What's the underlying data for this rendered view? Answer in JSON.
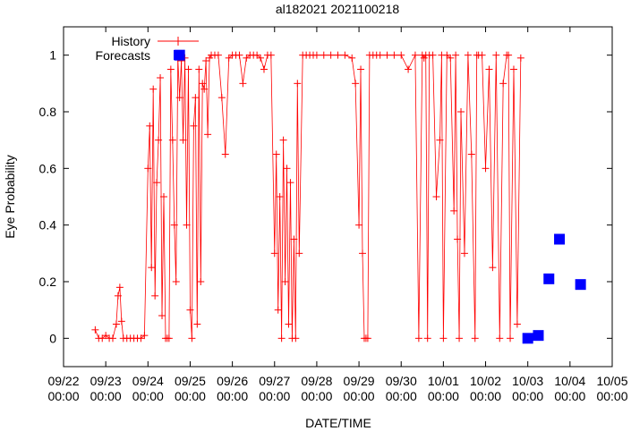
{
  "chart_data": {
    "type": "scatter",
    "title": "al182021 2021100218",
    "xlabel": "DATE/TIME",
    "ylabel": "Eye Probability",
    "xlim": [
      "09/22 00:00",
      "10/05 00:00"
    ],
    "ylim": [
      -0.1,
      1.1
    ],
    "x_ticks": [
      {
        "l1": "09/22",
        "l2": "00:00"
      },
      {
        "l1": "09/23",
        "l2": "00:00"
      },
      {
        "l1": "09/24",
        "l2": "00:00"
      },
      {
        "l1": "09/25",
        "l2": "00:00"
      },
      {
        "l1": "09/26",
        "l2": "00:00"
      },
      {
        "l1": "09/27",
        "l2": "00:00"
      },
      {
        "l1": "09/28",
        "l2": "00:00"
      },
      {
        "l1": "09/29",
        "l2": "00:00"
      },
      {
        "l1": "09/30",
        "l2": "00:00"
      },
      {
        "l1": "10/01",
        "l2": "00:00"
      },
      {
        "l1": "10/02",
        "l2": "00:00"
      },
      {
        "l1": "10/03",
        "l2": "00:00"
      },
      {
        "l1": "10/04",
        "l2": "00:00"
      },
      {
        "l1": "10/05",
        "l2": "00:00"
      }
    ],
    "y_ticks": [
      "0",
      "0.2",
      "0.4",
      "0.6",
      "0.8",
      "1"
    ],
    "legend_position": "top-left",
    "colors": {
      "history": "#ff0000",
      "forecasts": "#0000ff"
    },
    "series": [
      {
        "name": "History",
        "style": "line+plus",
        "x": [
          "09/22 18:00",
          "09/22 20:00",
          "09/22 22:00",
          "09/23 00:00",
          "09/23 02:00",
          "09/23 04:00",
          "09/23 06:00",
          "09/23 07:00",
          "09/23 08:00",
          "09/23 09:00",
          "09/23 10:00",
          "09/23 12:00",
          "09/23 14:00",
          "09/23 16:00",
          "09/23 18:00",
          "09/23 20:00",
          "09/23 22:00",
          "09/24 00:00",
          "09/24 01:00",
          "09/24 02:00",
          "09/24 03:00",
          "09/24 04:00",
          "09/24 05:00",
          "09/24 06:00",
          "09/24 07:00",
          "09/24 08:00",
          "09/24 09:00",
          "09/24 10:00",
          "09/24 11:00",
          "09/24 12:00",
          "09/24 13:00",
          "09/24 14:00",
          "09/24 15:00",
          "09/24 16:00",
          "09/24 17:00",
          "09/24 18:00",
          "09/24 19:00",
          "09/24 20:00",
          "09/24 21:00",
          "09/24 22:00",
          "09/24 23:00",
          "09/25 00:00",
          "09/25 01:00",
          "09/25 02:00",
          "09/25 03:00",
          "09/25 04:00",
          "09/25 05:00",
          "09/25 06:00",
          "09/25 07:00",
          "09/25 08:00",
          "09/25 09:00",
          "09/25 10:00",
          "09/25 11:00",
          "09/25 12:00",
          "09/25 14:00",
          "09/25 16:00",
          "09/25 18:00",
          "09/25 20:00",
          "09/25 22:00",
          "09/26 00:00",
          "09/26 02:00",
          "09/26 04:00",
          "09/26 06:00",
          "09/26 08:00",
          "09/26 10:00",
          "09/26 12:00",
          "09/26 14:00",
          "09/26 16:00",
          "09/26 18:00",
          "09/26 20:00",
          "09/26 22:00",
          "09/27 00:00",
          "09/27 01:00",
          "09/27 02:00",
          "09/27 03:00",
          "09/27 04:00",
          "09/27 05:00",
          "09/27 06:00",
          "09/27 07:00",
          "09/27 08:00",
          "09/27 09:00",
          "09/27 10:00",
          "09/27 11:00",
          "09/27 12:00",
          "09/27 13:00",
          "09/27 14:00",
          "09/27 16:00",
          "09/27 18:00",
          "09/27 20:00",
          "09/27 22:00",
          "09/28 00:00",
          "09/28 04:00",
          "09/28 08:00",
          "09/28 12:00",
          "09/28 16:00",
          "09/28 20:00",
          "09/28 22:00",
          "09/29 00:00",
          "09/29 01:00",
          "09/29 02:00",
          "09/29 03:00",
          "09/29 04:00",
          "09/29 05:00",
          "09/29 06:00",
          "09/29 08:00",
          "09/29 10:00",
          "09/29 12:00",
          "09/29 16:00",
          "09/29 20:00",
          "09/30 00:00",
          "09/30 04:00",
          "09/30 08:00",
          "09/30 10:00",
          "09/30 12:00",
          "09/30 13:00",
          "09/30 14:00",
          "09/30 15:00",
          "09/30 16:00",
          "09/30 18:00",
          "09/30 20:00",
          "09/30 22:00",
          "09/30 23:00",
          "10/01 00:00",
          "10/01 02:00",
          "10/01 04:00",
          "10/01 06:00",
          "10/01 07:00",
          "10/01 08:00",
          "10/01 09:00",
          "10/01 10:00",
          "10/01 12:00",
          "10/01 14:00",
          "10/01 16:00",
          "10/01 18:00",
          "10/01 19:00",
          "10/01 20:00",
          "10/01 22:00",
          "10/02 00:00",
          "10/02 02:00",
          "10/02 04:00",
          "10/02 06:00",
          "10/02 08:00",
          "10/02 10:00",
          "10/02 12:00",
          "10/02 13:00",
          "10/02 14:00",
          "10/02 16:00",
          "10/02 18:00",
          "10/02 20:00"
        ],
        "y": [
          0.03,
          0.0,
          0.0,
          0.01,
          0.0,
          0.0,
          0.05,
          0.15,
          0.18,
          0.06,
          0.0,
          0.0,
          0.0,
          0.0,
          0.0,
          0.0,
          0.01,
          0.6,
          0.75,
          0.25,
          0.88,
          0.15,
          0.55,
          0.7,
          0.92,
          0.08,
          0.5,
          0.0,
          0.0,
          0.0,
          0.95,
          0.7,
          0.4,
          0.2,
          0.99,
          0.85,
          0.98,
          0.7,
          0.99,
          0.4,
          0.95,
          0.1,
          0.0,
          0.75,
          0.85,
          0.05,
          0.95,
          0.2,
          0.9,
          0.88,
          0.98,
          0.72,
          0.99,
          1.0,
          1.0,
          1.0,
          0.85,
          0.65,
          0.99,
          1.0,
          1.0,
          1.0,
          0.9,
          0.99,
          1.0,
          1.0,
          1.0,
          0.99,
          0.95,
          1.0,
          1.0,
          0.3,
          0.65,
          0.1,
          0.5,
          0.0,
          0.7,
          0.2,
          0.6,
          0.05,
          0.55,
          0.0,
          0.35,
          0.0,
          0.9,
          0.3,
          1.0,
          1.0,
          1.0,
          1.0,
          1.0,
          1.0,
          1.0,
          1.0,
          1.0,
          0.99,
          0.9,
          0.4,
          0.95,
          0.3,
          0.0,
          0.0,
          0.0,
          1.0,
          1.0,
          1.0,
          1.0,
          1.0,
          1.0,
          1.0,
          0.95,
          1.0,
          0.0,
          1.0,
          0.99,
          1.0,
          0.0,
          1.0,
          1.0,
          0.5,
          0.7,
          1.0,
          0.0,
          1.0,
          0.99,
          0.45,
          1.0,
          0.35,
          0.0,
          0.8,
          0.3,
          1.0,
          0.65,
          0.0,
          1.0,
          1.0,
          1.0,
          0.6,
          0.95,
          0.25,
          1.0,
          0.0,
          0.9,
          1.0,
          1.0,
          0.0,
          0.95,
          0.05,
          0.99
        ]
      },
      {
        "name": "Forecasts",
        "style": "square",
        "x": [
          "09/24 18:00",
          "10/03 00:00",
          "10/03 06:00",
          "10/03 12:00",
          "10/03 18:00",
          "10/04 06:00"
        ],
        "y": [
          1.0,
          0.0,
          0.01,
          0.21,
          0.35,
          0.19
        ]
      }
    ]
  }
}
